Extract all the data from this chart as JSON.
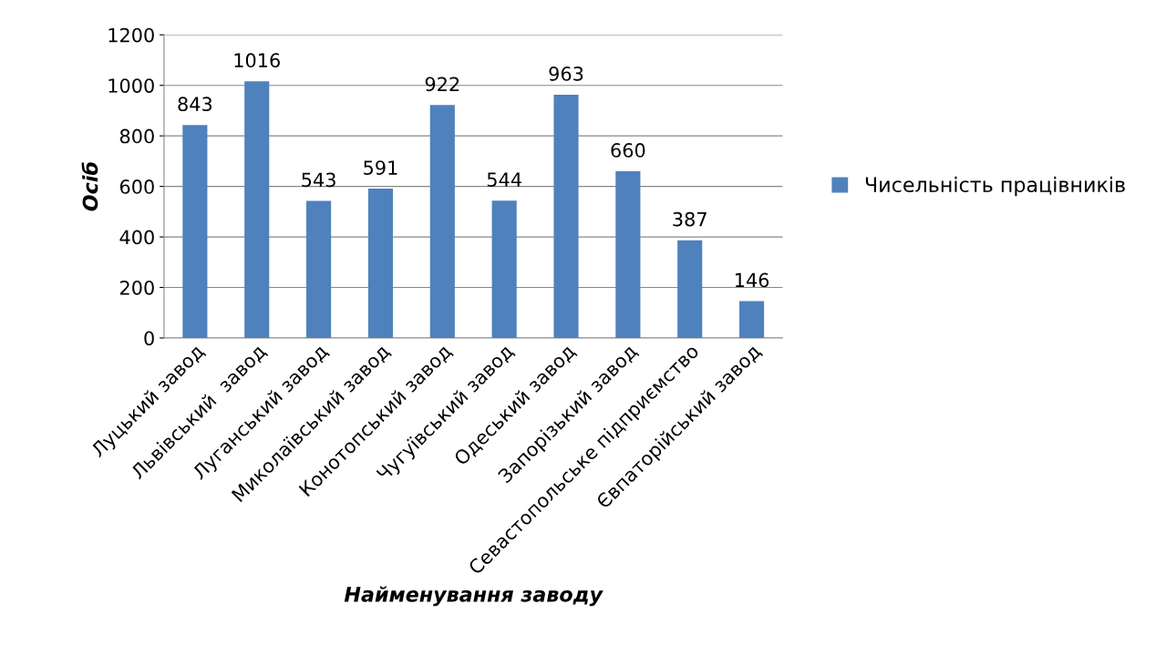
{
  "chart_data": {
    "type": "bar",
    "xlabel": "Найменування заводу",
    "ylabel": "Осіб",
    "categories": [
      "Луцький завод",
      "Львівський  завод",
      "Луганський завод",
      "Миколаївський завод",
      "Конотопський завод",
      "Чугуївський завод",
      "Одеський завод",
      "Запорізький завод",
      "Севастопольське підприємство",
      "Євпаторійський завод"
    ],
    "series": [
      {
        "name": "Чисельність працівників",
        "color": "#4f81bd",
        "values": [
          843,
          1016,
          543,
          591,
          922,
          544,
          963,
          660,
          387,
          146
        ]
      }
    ],
    "ylim": [
      0,
      1200
    ],
    "yticks": [
      0,
      200,
      400,
      600,
      800,
      1000,
      1200
    ],
    "grid": "y",
    "legend": "right",
    "data_labels": true
  }
}
